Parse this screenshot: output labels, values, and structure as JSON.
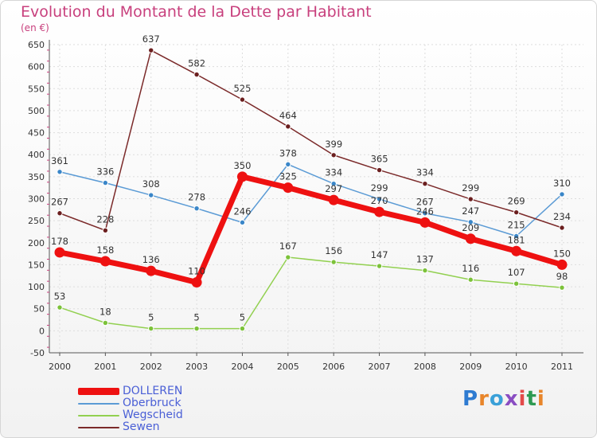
{
  "header": {
    "title": "Evolution du Montant de la Dette par Habitant",
    "subtitle": "(en €)"
  },
  "logo": {
    "text": "Proxiti"
  },
  "colors": {
    "DOLLEREN": "#ee1111",
    "Oberbruck": "#5b9bd5",
    "Wegscheid": "#92d050",
    "Sewen": "#7b2a2a",
    "title": "#c8407d",
    "grid": "#dddddd"
  },
  "chart_data": {
    "type": "line",
    "title": "Evolution du Montant de la Dette par Habitant",
    "subtitle": "(en €)",
    "x": [
      "2000",
      "2001",
      "2002",
      "2003",
      "2004",
      "2005",
      "2006",
      "2007",
      "2008",
      "2009",
      "2010",
      "2011"
    ],
    "ylim": [
      -50,
      650
    ],
    "yticks": [
      "-50",
      "0",
      "50",
      "100",
      "150",
      "200",
      "250",
      "300",
      "350",
      "400",
      "450",
      "500",
      "550",
      "600",
      "650"
    ],
    "grid": true,
    "legend_position": "bottom-left",
    "series": [
      {
        "name": "DOLLEREN",
        "values": [
          178,
          158,
          136,
          110,
          350,
          325,
          297,
          270,
          246,
          209,
          181,
          150
        ]
      },
      {
        "name": "Oberbruck",
        "values": [
          361,
          336,
          308,
          278,
          246,
          378,
          334,
          299,
          267,
          247,
          215,
          310
        ]
      },
      {
        "name": "Wegscheid",
        "values": [
          53,
          18,
          5,
          5,
          5,
          167,
          156,
          147,
          137,
          116,
          107,
          98
        ]
      },
      {
        "name": "Sewen",
        "values": [
          267,
          228,
          637,
          582,
          525,
          464,
          399,
          365,
          334,
          299,
          269,
          234
        ]
      }
    ]
  }
}
